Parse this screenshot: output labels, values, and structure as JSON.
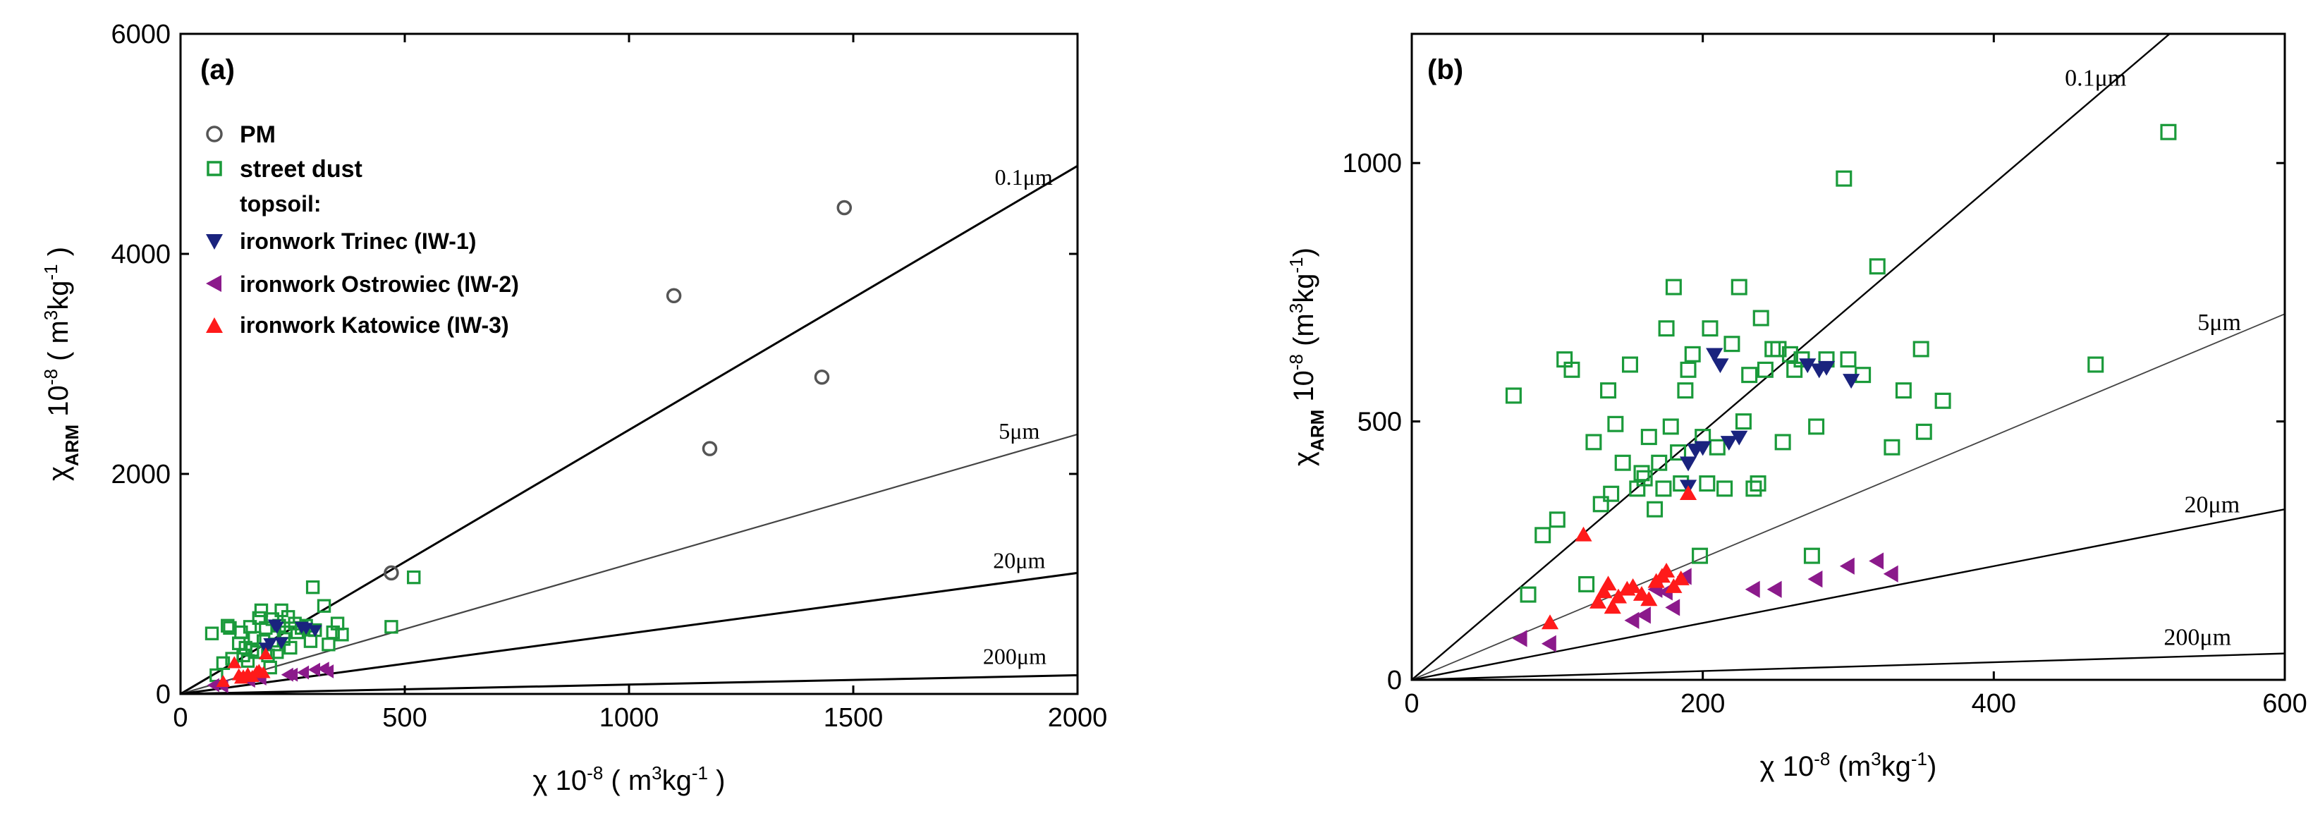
{
  "colors": {
    "axis": "#000000",
    "pm": "#555555",
    "street_dust": "#1a9a3a",
    "iw1": "#1a237e",
    "iw2": "#8b1a8b",
    "iw3": "#ff1a1a"
  },
  "chart_data": [
    {
      "type": "scatter",
      "panel_label": "(a)",
      "xlabel": {
        "main": "χ 10",
        "sup1": "-8",
        "open": " ( m",
        "sup2": "3",
        "tail": "kg",
        "sup3": "-1",
        "close": " )"
      },
      "ylabel": {
        "main": "χ",
        "sub": "ARM",
        "mid": " 10",
        "sup1": "-8",
        "open": " ( m",
        "sup2": "3",
        "tail": "kg",
        "sup3": "-1",
        "close": " )"
      },
      "xlim": [
        0,
        2000
      ],
      "ylim": [
        0,
        6000
      ],
      "xticks": [
        0,
        500,
        1000,
        1500,
        2000
      ],
      "yticks": [
        0,
        2000,
        4000,
        6000
      ],
      "legend": {
        "placement": "top-left",
        "items": [
          {
            "label": "PM",
            "marker": "circle",
            "series": "pm"
          },
          {
            "label": "street dust",
            "marker": "square",
            "series": "street_dust"
          },
          {
            "label": "topsoil:",
            "marker": "none",
            "series": ""
          },
          {
            "label": "ironwork Trinec (IW-1)",
            "marker": "triangle-down",
            "series": "iw1"
          },
          {
            "label": "ironwork Ostrowiec (IW-2)",
            "marker": "triangle-left",
            "series": "iw2"
          },
          {
            "label": "ironwork Katowice (IW-3)",
            "marker": "triangle-up",
            "series": "iw3"
          }
        ]
      },
      "reference_lines": [
        {
          "label": "0.1μm",
          "slope": 2.4,
          "label_x": 1880
        },
        {
          "label": "5μm",
          "slope": 1.18,
          "label_x": 1870
        },
        {
          "label": "20μm",
          "slope": 0.55,
          "label_x": 1870
        },
        {
          "label": "200μm",
          "slope": 0.085,
          "label_x": 1860
        }
      ],
      "series": [
        {
          "name": "pm",
          "marker": "circle",
          "points": [
            [
              470,
              1100
            ],
            [
              1100,
              3620
            ],
            [
              1180,
              2230
            ],
            [
              1430,
              2880
            ],
            [
              1480,
              4420
            ]
          ]
        },
        {
          "name": "street_dust",
          "marker": "square",
          "points": [
            [
              70,
              550
            ],
            [
              80,
              170
            ],
            [
              95,
              280
            ],
            [
              105,
              620
            ],
            [
              110,
              600
            ],
            [
              115,
              320
            ],
            [
              130,
              460
            ],
            [
              135,
              560
            ],
            [
              140,
              350
            ],
            [
              145,
              420
            ],
            [
              150,
              300
            ],
            [
              155,
              610
            ],
            [
              160,
              400
            ],
            [
              165,
              510
            ],
            [
              170,
              380
            ],
            [
              175,
              690
            ],
            [
              180,
              760
            ],
            [
              185,
              480
            ],
            [
              190,
              600
            ],
            [
              195,
              350
            ],
            [
              200,
              240
            ],
            [
              205,
              680
            ],
            [
              210,
              450
            ],
            [
              215,
              380
            ],
            [
              220,
              620
            ],
            [
              225,
              760
            ],
            [
              230,
              500
            ],
            [
              235,
              560
            ],
            [
              240,
              700
            ],
            [
              245,
              420
            ],
            [
              255,
              640
            ],
            [
              260,
              560
            ],
            [
              270,
              600
            ],
            [
              280,
              620
            ],
            [
              290,
              480
            ],
            [
              295,
              970
            ],
            [
              300,
              580
            ],
            [
              320,
              800
            ],
            [
              330,
              450
            ],
            [
              340,
              560
            ],
            [
              350,
              640
            ],
            [
              360,
              540
            ],
            [
              470,
              610
            ],
            [
              520,
              1060
            ]
          ]
        },
        {
          "name": "iw1",
          "marker": "triangle-down",
          "points": [
            [
              190,
              420
            ],
            [
              200,
              460
            ],
            [
              210,
              630
            ],
            [
              215,
              610
            ],
            [
              225,
              470
            ],
            [
              270,
              610
            ],
            [
              280,
              600
            ],
            [
              300,
              580
            ]
          ]
        },
        {
          "name": "iw2",
          "marker": "triangle-left",
          "points": [
            [
              75,
              80
            ],
            [
              95,
              70
            ],
            [
              155,
              120
            ],
            [
              170,
              180
            ],
            [
              180,
              140
            ],
            [
              240,
              175
            ],
            [
              250,
              175
            ],
            [
              275,
              195
            ],
            [
              300,
              220
            ],
            [
              320,
              230
            ],
            [
              330,
              205
            ]
          ]
        },
        {
          "name": "iw3",
          "marker": "triangle-up",
          "points": [
            [
              95,
              110
            ],
            [
              120,
              280
            ],
            [
              130,
              170
            ],
            [
              135,
              140
            ],
            [
              140,
              160
            ],
            [
              150,
              180
            ],
            [
              160,
              155
            ],
            [
              170,
              200
            ],
            [
              175,
              210
            ],
            [
              185,
              190
            ],
            [
              190,
              360
            ]
          ]
        }
      ]
    },
    {
      "type": "scatter",
      "panel_label": "(b)",
      "xlabel": {
        "main": "χ 10",
        "sup1": "-8",
        "open": " (m",
        "sup2": "3",
        "tail": "kg",
        "sup3": "-1",
        "close": ")"
      },
      "ylabel": {
        "main": "χ",
        "sub": "ARM",
        "mid": " 10",
        "sup1": "-8",
        "open": " (m",
        "sup2": "3",
        "tail": "kg",
        "sup3": "-1",
        "close": ")"
      },
      "xlim": [
        0,
        600
      ],
      "ylim": [
        0,
        1250
      ],
      "xticks": [
        0,
        200,
        400,
        600
      ],
      "yticks": [
        0,
        500,
        1000
      ],
      "reference_lines": [
        {
          "label": "0.1μm",
          "slope": 2.4,
          "label_x": 470
        },
        {
          "label": "5μm",
          "slope": 1.18,
          "label_x": 555
        },
        {
          "label": "20μm",
          "slope": 0.55,
          "label_x": 550
        },
        {
          "label": "200μm",
          "slope": 0.085,
          "label_x": 540
        }
      ],
      "series": [
        {
          "name": "street_dust",
          "marker": "square",
          "points": [
            [
              70,
              550
            ],
            [
              80,
              165
            ],
            [
              90,
              280
            ],
            [
              100,
              310
            ],
            [
              105,
              620
            ],
            [
              110,
              600
            ],
            [
              120,
              185
            ],
            [
              125,
              460
            ],
            [
              130,
              340
            ],
            [
              135,
              560
            ],
            [
              137,
              360
            ],
            [
              140,
              495
            ],
            [
              145,
              420
            ],
            [
              150,
              610
            ],
            [
              155,
              370
            ],
            [
              158,
              400
            ],
            [
              160,
              390
            ],
            [
              163,
              470
            ],
            [
              167,
              330
            ],
            [
              170,
              420
            ],
            [
              173,
              370
            ],
            [
              175,
              680
            ],
            [
              178,
              490
            ],
            [
              180,
              760
            ],
            [
              183,
              440
            ],
            [
              185,
              380
            ],
            [
              188,
              560
            ],
            [
              190,
              600
            ],
            [
              193,
              630
            ],
            [
              198,
              240
            ],
            [
              200,
              470
            ],
            [
              203,
              380
            ],
            [
              205,
              680
            ],
            [
              210,
              450
            ],
            [
              215,
              370
            ],
            [
              220,
              650
            ],
            [
              225,
              760
            ],
            [
              228,
              500
            ],
            [
              232,
              590
            ],
            [
              235,
              370
            ],
            [
              238,
              380
            ],
            [
              240,
              700
            ],
            [
              243,
              600
            ],
            [
              248,
              640
            ],
            [
              252,
              640
            ],
            [
              255,
              460
            ],
            [
              260,
              630
            ],
            [
              263,
              600
            ],
            [
              268,
              620
            ],
            [
              275,
              240
            ],
            [
              278,
              490
            ],
            [
              285,
              620
            ],
            [
              297,
              970
            ],
            [
              300,
              620
            ],
            [
              310,
              590
            ],
            [
              320,
              800
            ],
            [
              330,
              450
            ],
            [
              338,
              560
            ],
            [
              350,
              640
            ],
            [
              352,
              480
            ],
            [
              365,
              540
            ],
            [
              470,
              610
            ],
            [
              520,
              1060
            ]
          ]
        },
        {
          "name": "iw1",
          "marker": "triangle-down",
          "points": [
            [
              190,
              375
            ],
            [
              190,
              420
            ],
            [
              195,
              445
            ],
            [
              200,
              450
            ],
            [
              208,
              630
            ],
            [
              212,
              610
            ],
            [
              218,
              460
            ],
            [
              225,
              470
            ],
            [
              272,
              610
            ],
            [
              280,
              600
            ],
            [
              285,
              605
            ],
            [
              302,
              580
            ]
          ]
        },
        {
          "name": "iw2",
          "marker": "triangle-left",
          "points": [
            [
              75,
              80
            ],
            [
              95,
              70
            ],
            [
              152,
              115
            ],
            [
              160,
              125
            ],
            [
              168,
              175
            ],
            [
              175,
              170
            ],
            [
              180,
              140
            ],
            [
              188,
              200
            ],
            [
              235,
              175
            ],
            [
              250,
              175
            ],
            [
              278,
              195
            ],
            [
              300,
              220
            ],
            [
              320,
              230
            ],
            [
              330,
              205
            ]
          ]
        },
        {
          "name": "iw3",
          "marker": "triangle-up",
          "points": [
            [
              95,
              110
            ],
            [
              118,
              280
            ],
            [
              128,
              150
            ],
            [
              132,
              170
            ],
            [
              135,
              185
            ],
            [
              138,
              140
            ],
            [
              142,
              160
            ],
            [
              148,
              175
            ],
            [
              152,
              180
            ],
            [
              158,
              165
            ],
            [
              163,
              155
            ],
            [
              168,
              190
            ],
            [
              172,
              200
            ],
            [
              175,
              210
            ],
            [
              180,
              180
            ],
            [
              185,
              195
            ],
            [
              190,
              360
            ]
          ]
        }
      ]
    }
  ]
}
